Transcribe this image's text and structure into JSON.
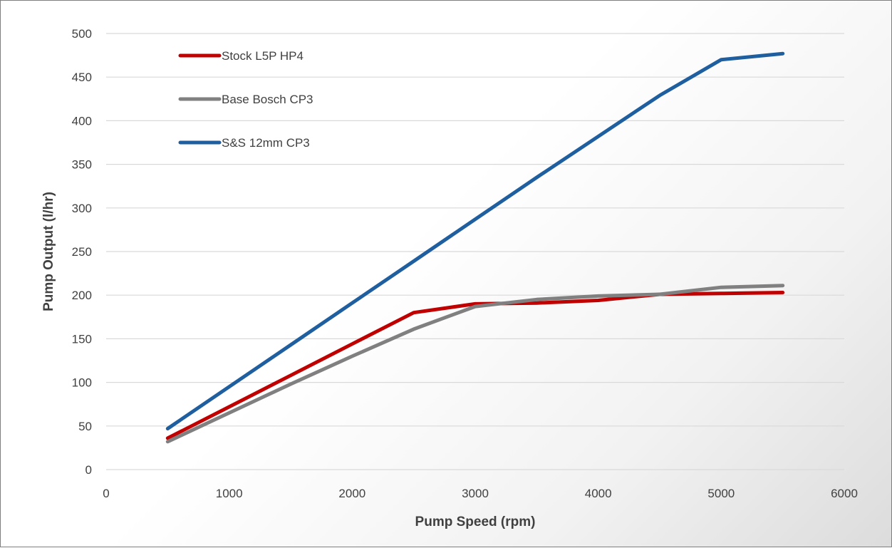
{
  "chart_data": {
    "type": "line",
    "title": "",
    "xlabel": "Pump Speed (rpm)",
    "ylabel": "Pump Output (l/hr)",
    "xlim": [
      0,
      6000
    ],
    "ylim": [
      0,
      500
    ],
    "x_ticks": [
      0,
      1000,
      2000,
      3000,
      4000,
      5000,
      6000
    ],
    "y_ticks": [
      0,
      50,
      100,
      150,
      200,
      250,
      300,
      350,
      400,
      450,
      500
    ],
    "grid": "horizontal",
    "legend_position": "top-left",
    "series": [
      {
        "name": "Stock L5P HP4",
        "color": "#c00000",
        "x": [
          500,
          1000,
          1500,
          2000,
          2500,
          3000,
          3500,
          4000,
          4500,
          5000,
          5500
        ],
        "y": [
          36,
          72,
          108,
          144,
          180,
          190,
          191,
          194,
          201,
          202,
          203
        ]
      },
      {
        "name": "Base Bosch CP3",
        "color": "#808080",
        "x": [
          500,
          1000,
          1500,
          2000,
          2500,
          3000,
          3500,
          4000,
          4500,
          5000,
          5500
        ],
        "y": [
          32,
          65,
          98,
          130,
          161,
          187,
          195,
          199,
          201,
          209,
          211
        ]
      },
      {
        "name": "S&S 12mm CP3",
        "color": "#1f5f9f",
        "x": [
          500,
          1000,
          1500,
          2000,
          2500,
          3000,
          3500,
          4000,
          4500,
          5000,
          5500
        ],
        "y": [
          47,
          95,
          143,
          191,
          239,
          287,
          335,
          382,
          429,
          470,
          477
        ]
      }
    ]
  }
}
